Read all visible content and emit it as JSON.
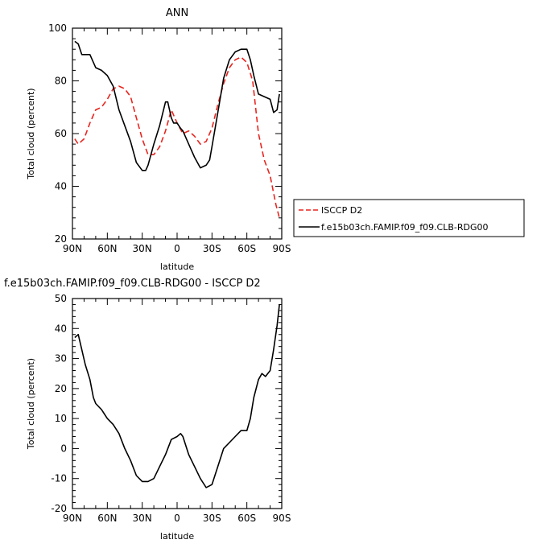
{
  "chart_data": [
    {
      "type": "line",
      "title": "ANN",
      "xlabel": "latitude",
      "ylabel": "Total cloud (percent)",
      "xticks": [
        "90N",
        "60N",
        "30N",
        "0",
        "30S",
        "60S",
        "90S"
      ],
      "xtick_values": [
        90,
        60,
        30,
        0,
        -30,
        -60,
        -90
      ],
      "yticks": [
        20,
        40,
        60,
        80,
        100
      ],
      "xlim": [
        90,
        -90
      ],
      "ylim": [
        20,
        100
      ],
      "legend_position": "right",
      "series": [
        {
          "name": "ISCCP D2",
          "color": "#e8251f",
          "dash": "dashed",
          "x": [
            88,
            85,
            80,
            75,
            70,
            65,
            60,
            55,
            50,
            45,
            40,
            35,
            30,
            25,
            20,
            15,
            10,
            5,
            0,
            -5,
            -10,
            -15,
            -20,
            -25,
            -30,
            -35,
            -40,
            -45,
            -50,
            -55,
            -60,
            -65,
            -70,
            -75,
            -80,
            -85,
            -88
          ],
          "y": [
            58,
            56,
            58,
            64,
            69,
            70,
            73,
            77,
            78,
            77,
            74,
            66,
            58,
            52,
            52,
            55,
            61,
            69,
            64,
            60,
            61,
            59,
            56,
            57,
            62,
            71,
            79,
            85,
            88,
            89,
            87,
            80,
            60,
            50,
            44,
            33,
            28
          ]
        },
        {
          "name": "f.e15b03ch.FAMIP.f09_f09.CLB-RDG00",
          "color": "#000000",
          "dash": "solid",
          "x": [
            88,
            85,
            82,
            79,
            75,
            70,
            65,
            60,
            55,
            50,
            45,
            40,
            35,
            30,
            27,
            25,
            20,
            15,
            10,
            8,
            5,
            3,
            0,
            -3,
            -5,
            -10,
            -15,
            -20,
            -25,
            -28,
            -30,
            -35,
            -40,
            -45,
            -50,
            -55,
            -60,
            -63,
            -66,
            -70,
            -75,
            -80,
            -83,
            -86,
            -88
          ],
          "y": [
            95,
            94,
            90,
            90,
            90,
            85,
            84,
            82,
            78,
            69,
            63,
            57,
            49,
            46,
            46,
            48,
            56,
            63,
            72,
            72,
            66,
            64,
            64,
            62,
            61,
            56,
            51,
            47,
            48,
            50,
            55,
            68,
            81,
            88,
            91,
            92,
            92,
            88,
            82,
            75,
            74,
            73,
            68,
            69,
            75
          ]
        }
      ]
    },
    {
      "type": "line",
      "title": "f.e15b03ch.FAMIP.f09_f09.CLB-RDG00 - ISCCP D2",
      "xlabel": "latitude",
      "ylabel": "Total cloud (percent)",
      "xticks": [
        "90N",
        "60N",
        "30N",
        "0",
        "30S",
        "60S",
        "90S"
      ],
      "xtick_values": [
        90,
        60,
        30,
        0,
        -30,
        -60,
        -90
      ],
      "yticks": [
        -20,
        -10,
        0,
        10,
        20,
        30,
        40,
        50
      ],
      "xlim": [
        90,
        -90
      ],
      "ylim": [
        -20,
        50
      ],
      "series": [
        {
          "color": "#000000",
          "dash": "solid",
          "x": [
            88,
            85,
            82,
            79,
            75,
            72,
            70,
            65,
            60,
            55,
            50,
            45,
            40,
            35,
            30,
            25,
            20,
            15,
            10,
            5,
            0,
            -3,
            -5,
            -10,
            -15,
            -20,
            -25,
            -30,
            -35,
            -40,
            -45,
            -50,
            -55,
            -60,
            -63,
            -66,
            -70,
            -73,
            -76,
            -80,
            -83,
            -86,
            -88
          ],
          "y": [
            37,
            38,
            33,
            28,
            23,
            17,
            15,
            13,
            10,
            8,
            5,
            0,
            -4,
            -9,
            -11,
            -11,
            -10,
            -6,
            -2,
            3,
            4,
            5,
            4,
            -2,
            -6,
            -10,
            -13,
            -12,
            -6,
            0,
            2,
            4,
            6,
            6,
            10,
            17,
            23,
            25,
            24,
            26,
            33,
            41,
            48
          ]
        }
      ]
    }
  ]
}
